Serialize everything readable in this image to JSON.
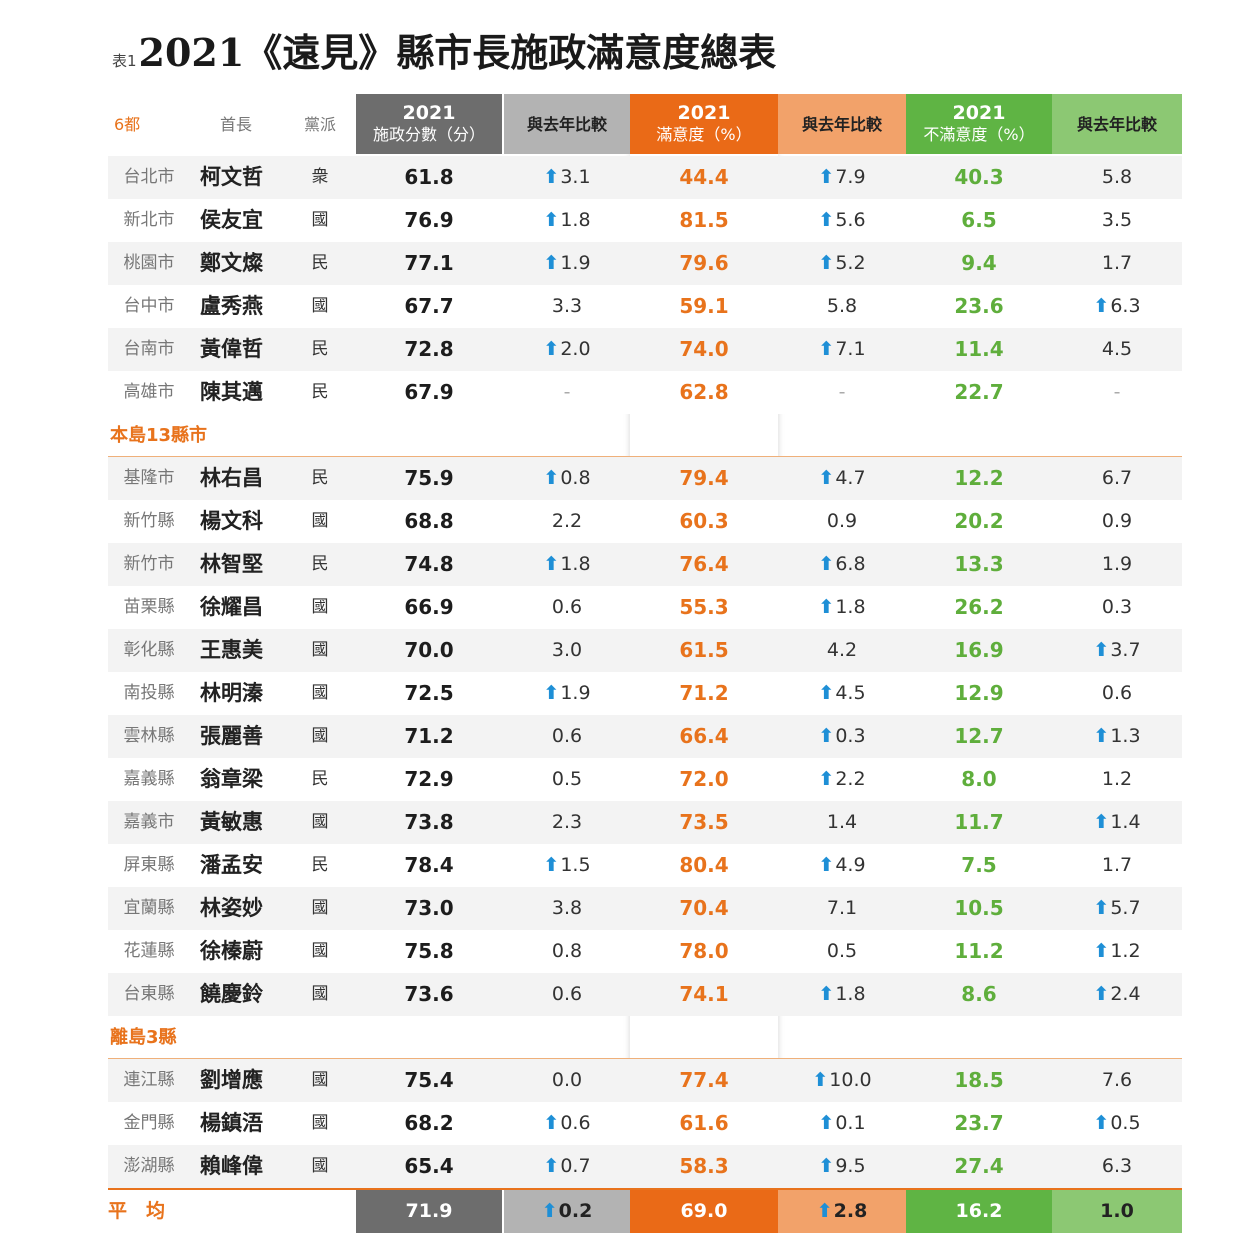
{
  "title": {
    "prefix": "表1",
    "text": "2021《遠見》縣市長施政滿意度總表"
  },
  "colors": {
    "dark_gray": "#6d6d6d",
    "light_gray": "#b3b3b3",
    "orange": "#ea6a17",
    "light_orange": "#f2a26a",
    "green": "#5fb444",
    "light_green": "#8cc873",
    "up_arrow": "#1e8fd6"
  },
  "headers": {
    "group": "6都",
    "leader": "首長",
    "party": "黨派",
    "score_year": "2021",
    "score_label": "施政分數（分）",
    "compare1": "與去年比較",
    "sat_year": "2021",
    "sat_label": "滿意度（%）",
    "compare2": "與去年比較",
    "dis_year": "2021",
    "dis_label": "不滿意度（%）",
    "compare3": "與去年比較"
  },
  "sections": [
    {
      "label": "",
      "rows": [
        {
          "city": "台北市",
          "name": "柯文哲",
          "party": "衆",
          "score": "61.8",
          "c1": "3.1",
          "c1_up": true,
          "sat": "44.4",
          "c2": "7.9",
          "c2_up": true,
          "dis": "40.3",
          "c3": "5.8",
          "c3_up": false
        },
        {
          "city": "新北市",
          "name": "侯友宜",
          "party": "國",
          "score": "76.9",
          "c1": "1.8",
          "c1_up": true,
          "sat": "81.5",
          "c2": "5.6",
          "c2_up": true,
          "dis": "6.5",
          "c3": "3.5",
          "c3_up": false
        },
        {
          "city": "桃園市",
          "name": "鄭文燦",
          "party": "民",
          "score": "77.1",
          "c1": "1.9",
          "c1_up": true,
          "sat": "79.6",
          "c2": "5.2",
          "c2_up": true,
          "dis": "9.4",
          "c3": "1.7",
          "c3_up": false
        },
        {
          "city": "台中市",
          "name": "盧秀燕",
          "party": "國",
          "score": "67.7",
          "c1": "3.3",
          "c1_up": false,
          "sat": "59.1",
          "c2": "5.8",
          "c2_up": false,
          "dis": "23.6",
          "c3": "6.3",
          "c3_up": true
        },
        {
          "city": "台南市",
          "name": "黃偉哲",
          "party": "民",
          "score": "72.8",
          "c1": "2.0",
          "c1_up": true,
          "sat": "74.0",
          "c2": "7.1",
          "c2_up": true,
          "dis": "11.4",
          "c3": "4.5",
          "c3_up": false
        },
        {
          "city": "高雄市",
          "name": "陳其邁",
          "party": "民",
          "score": "67.9",
          "c1": "-",
          "c1_up": false,
          "sat": "62.8",
          "c2": "-",
          "c2_up": false,
          "dis": "22.7",
          "c3": "-",
          "c3_up": false
        }
      ]
    },
    {
      "label": "本島13縣市",
      "rows": [
        {
          "city": "基隆市",
          "name": "林右昌",
          "party": "民",
          "score": "75.9",
          "c1": "0.8",
          "c1_up": true,
          "sat": "79.4",
          "c2": "4.7",
          "c2_up": true,
          "dis": "12.2",
          "c3": "6.7",
          "c3_up": false
        },
        {
          "city": "新竹縣",
          "name": "楊文科",
          "party": "國",
          "score": "68.8",
          "c1": "2.2",
          "c1_up": false,
          "sat": "60.3",
          "c2": "0.9",
          "c2_up": false,
          "dis": "20.2",
          "c3": "0.9",
          "c3_up": false
        },
        {
          "city": "新竹市",
          "name": "林智堅",
          "party": "民",
          "score": "74.8",
          "c1": "1.8",
          "c1_up": true,
          "sat": "76.4",
          "c2": "6.8",
          "c2_up": true,
          "dis": "13.3",
          "c3": "1.9",
          "c3_up": false
        },
        {
          "city": "苗栗縣",
          "name": "徐耀昌",
          "party": "國",
          "score": "66.9",
          "c1": "0.6",
          "c1_up": false,
          "sat": "55.3",
          "c2": "1.8",
          "c2_up": true,
          "dis": "26.2",
          "c3": "0.3",
          "c3_up": false
        },
        {
          "city": "彰化縣",
          "name": "王惠美",
          "party": "國",
          "score": "70.0",
          "c1": "3.0",
          "c1_up": false,
          "sat": "61.5",
          "c2": "4.2",
          "c2_up": false,
          "dis": "16.9",
          "c3": "3.7",
          "c3_up": true
        },
        {
          "city": "南投縣",
          "name": "林明溱",
          "party": "國",
          "score": "72.5",
          "c1": "1.9",
          "c1_up": true,
          "sat": "71.2",
          "c2": "4.5",
          "c2_up": true,
          "dis": "12.9",
          "c3": "0.6",
          "c3_up": false
        },
        {
          "city": "雲林縣",
          "name": "張麗善",
          "party": "國",
          "score": "71.2",
          "c1": "0.6",
          "c1_up": false,
          "sat": "66.4",
          "c2": "0.3",
          "c2_up": true,
          "dis": "12.7",
          "c3": "1.3",
          "c3_up": true
        },
        {
          "city": "嘉義縣",
          "name": "翁章梁",
          "party": "民",
          "score": "72.9",
          "c1": "0.5",
          "c1_up": false,
          "sat": "72.0",
          "c2": "2.2",
          "c2_up": true,
          "dis": "8.0",
          "c3": "1.2",
          "c3_up": false
        },
        {
          "city": "嘉義市",
          "name": "黃敏惠",
          "party": "國",
          "score": "73.8",
          "c1": "2.3",
          "c1_up": false,
          "sat": "73.5",
          "c2": "1.4",
          "c2_up": false,
          "dis": "11.7",
          "c3": "1.4",
          "c3_up": true
        },
        {
          "city": "屏東縣",
          "name": "潘孟安",
          "party": "民",
          "score": "78.4",
          "c1": "1.5",
          "c1_up": true,
          "sat": "80.4",
          "c2": "4.9",
          "c2_up": true,
          "dis": "7.5",
          "c3": "1.7",
          "c3_up": false
        },
        {
          "city": "宜蘭縣",
          "name": "林姿妙",
          "party": "國",
          "score": "73.0",
          "c1": "3.8",
          "c1_up": false,
          "sat": "70.4",
          "c2": "7.1",
          "c2_up": false,
          "dis": "10.5",
          "c3": "5.7",
          "c3_up": true
        },
        {
          "city": "花蓮縣",
          "name": "徐榛蔚",
          "party": "國",
          "score": "75.8",
          "c1": "0.8",
          "c1_up": false,
          "sat": "78.0",
          "c2": "0.5",
          "c2_up": false,
          "dis": "11.2",
          "c3": "1.2",
          "c3_up": true
        },
        {
          "city": "台東縣",
          "name": "饒慶鈴",
          "party": "國",
          "score": "73.6",
          "c1": "0.6",
          "c1_up": false,
          "sat": "74.1",
          "c2": "1.8",
          "c2_up": true,
          "dis": "8.6",
          "c3": "2.4",
          "c3_up": true
        }
      ]
    },
    {
      "label": "離島3縣",
      "rows": [
        {
          "city": "連江縣",
          "name": "劉增應",
          "party": "國",
          "score": "75.4",
          "c1": "0.0",
          "c1_up": false,
          "sat": "77.4",
          "c2": "10.0",
          "c2_up": true,
          "dis": "18.5",
          "c3": "7.6",
          "c3_up": false
        },
        {
          "city": "金門縣",
          "name": "楊鎮浯",
          "party": "國",
          "score": "68.2",
          "c1": "0.6",
          "c1_up": true,
          "sat": "61.6",
          "c2": "0.1",
          "c2_up": true,
          "dis": "23.7",
          "c3": "0.5",
          "c3_up": true
        },
        {
          "city": "澎湖縣",
          "name": "賴峰偉",
          "party": "國",
          "score": "65.4",
          "c1": "0.7",
          "c1_up": true,
          "sat": "58.3",
          "c2": "9.5",
          "c2_up": true,
          "dis": "27.4",
          "c3": "6.3",
          "c3_up": false
        }
      ]
    }
  ],
  "average": {
    "label": "平　均",
    "score": "71.9",
    "c1": "0.2",
    "c1_up": true,
    "sat": "69.0",
    "c2": "2.8",
    "c2_up": true,
    "dis": "16.2",
    "c3": "1.0",
    "c3_up": false
  }
}
